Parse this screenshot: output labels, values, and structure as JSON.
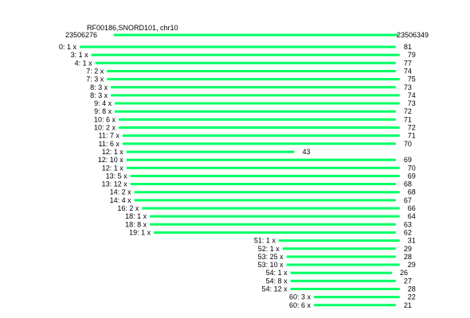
{
  "header": {
    "title": "RF00186,SNORD101, chr10",
    "ref_start": "23506276",
    "ref_end": "23506349"
  },
  "colors": {
    "bar": "#00ff66",
    "text": "#000000"
  },
  "chart_data": {
    "type": "read-alignment",
    "reference": {
      "start": 23506276,
      "end": 23506349,
      "length": 74
    },
    "reads": [
      {
        "label": "0: 1 x",
        "offset": 0,
        "length": 81
      },
      {
        "label": "3: 1 x",
        "offset": 3,
        "length": 79
      },
      {
        "label": "4: 1 x",
        "offset": 4,
        "length": 77
      },
      {
        "label": "7: 2 x",
        "offset": 7,
        "length": 74
      },
      {
        "label": "7: 3 x",
        "offset": 7,
        "length": 75
      },
      {
        "label": "8: 3 x",
        "offset": 8,
        "length": 73
      },
      {
        "label": "8: 3 x",
        "offset": 8,
        "length": 74
      },
      {
        "label": "9: 4 x",
        "offset": 9,
        "length": 73
      },
      {
        "label": "9: 8 x",
        "offset": 9,
        "length": 72
      },
      {
        "label": "10: 6 x",
        "offset": 10,
        "length": 71
      },
      {
        "label": "10: 2 x",
        "offset": 10,
        "length": 72
      },
      {
        "label": "11: 7 x",
        "offset": 11,
        "length": 71
      },
      {
        "label": "11: 6 x",
        "offset": 11,
        "length": 70
      },
      {
        "label": "12: 1 x",
        "offset": 12,
        "length": 43
      },
      {
        "label": "12: 10 x",
        "offset": 12,
        "length": 69
      },
      {
        "label": "12: 1 x",
        "offset": 12,
        "length": 70
      },
      {
        "label": "13: 5 x",
        "offset": 13,
        "length": 69
      },
      {
        "label": "13: 12 x",
        "offset": 13,
        "length": 68
      },
      {
        "label": "14: 2 x",
        "offset": 14,
        "length": 68
      },
      {
        "label": "14: 4 x",
        "offset": 14,
        "length": 67
      },
      {
        "label": "16: 2 x",
        "offset": 16,
        "length": 66
      },
      {
        "label": "18: 1 x",
        "offset": 18,
        "length": 64
      },
      {
        "label": "18: 8 x",
        "offset": 18,
        "length": 63
      },
      {
        "label": "19: 1 x",
        "offset": 19,
        "length": 62
      },
      {
        "label": "51: 1 x",
        "offset": 51,
        "length": 31
      },
      {
        "label": "52: 1 x",
        "offset": 52,
        "length": 29
      },
      {
        "label": "53: 25 x",
        "offset": 53,
        "length": 28
      },
      {
        "label": "53: 10 x",
        "offset": 53,
        "length": 29
      },
      {
        "label": "54: 1 x",
        "offset": 54,
        "length": 26
      },
      {
        "label": "54: 8 x",
        "offset": 54,
        "length": 27
      },
      {
        "label": "54: 12 x",
        "offset": 54,
        "length": 28
      },
      {
        "label": "60: 3 x",
        "offset": 60,
        "length": 22
      },
      {
        "label": "60: 6 x",
        "offset": 60,
        "length": 21
      }
    ]
  }
}
